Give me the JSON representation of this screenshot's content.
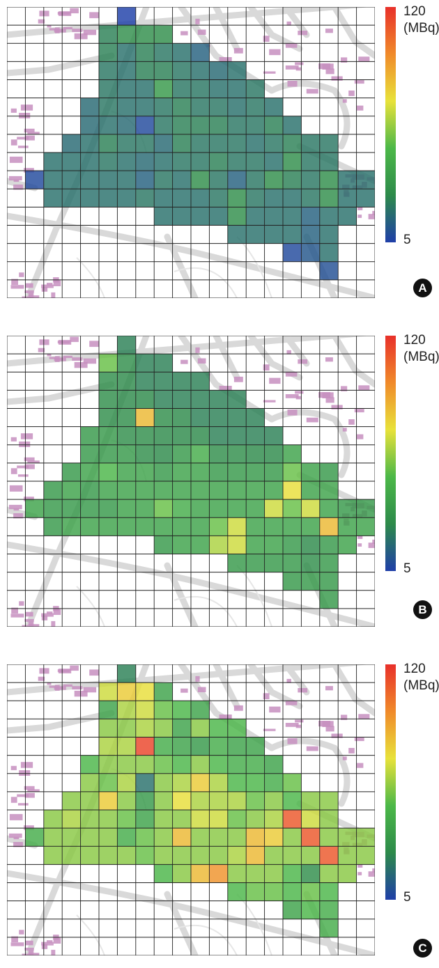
{
  "legend": {
    "max_label": "120",
    "unit_label": "(MBq)",
    "min_label": "5",
    "min_value": 5,
    "max_value": 120
  },
  "colors": {
    "scale": [
      "#1f3fa8",
      "#2d8a4a",
      "#4cb848",
      "#e8e23a",
      "#f08a2a",
      "#e8302a"
    ],
    "road": "#d9d9d9",
    "building": "#c78fc0",
    "grid": "#222222"
  },
  "grid": {
    "cols": 20,
    "rows": 16
  },
  "panels": [
    {
      "id": "A",
      "label": "A",
      "cell_values": [
        [
          null,
          null,
          null,
          null,
          null,
          null,
          5,
          null,
          null,
          null,
          null,
          null,
          null,
          null,
          null,
          null,
          null,
          null,
          null,
          null
        ],
        [
          null,
          null,
          null,
          null,
          null,
          25,
          30,
          30,
          30,
          null,
          null,
          null,
          null,
          null,
          null,
          null,
          null,
          null,
          null,
          null
        ],
        [
          null,
          null,
          null,
          null,
          null,
          25,
          20,
          25,
          22,
          20,
          15,
          null,
          null,
          null,
          null,
          null,
          null,
          null,
          null,
          null
        ],
        [
          null,
          null,
          null,
          null,
          null,
          22,
          20,
          25,
          25,
          22,
          20,
          18,
          20,
          null,
          null,
          null,
          null,
          null,
          null,
          null
        ],
        [
          null,
          null,
          null,
          null,
          null,
          22,
          20,
          20,
          35,
          22,
          22,
          20,
          20,
          22,
          null,
          null,
          null,
          null,
          null,
          null
        ],
        [
          null,
          null,
          null,
          null,
          18,
          22,
          20,
          20,
          22,
          25,
          22,
          22,
          20,
          22,
          20,
          null,
          null,
          null,
          null,
          null
        ],
        [
          null,
          null,
          null,
          null,
          18,
          20,
          18,
          8,
          22,
          25,
          25,
          25,
          22,
          22,
          25,
          20,
          null,
          null,
          null,
          null
        ],
        [
          null,
          null,
          null,
          18,
          20,
          25,
          22,
          22,
          18,
          25,
          22,
          22,
          22,
          20,
          22,
          25,
          22,
          22,
          null,
          null
        ],
        [
          null,
          null,
          20,
          20,
          20,
          22,
          20,
          18,
          20,
          22,
          22,
          25,
          22,
          22,
          20,
          30,
          22,
          22,
          null,
          null
        ],
        [
          null,
          8,
          20,
          20,
          20,
          20,
          20,
          15,
          22,
          20,
          30,
          22,
          15,
          22,
          30,
          25,
          22,
          30,
          20,
          20
        ],
        [
          null,
          null,
          20,
          20,
          20,
          20,
          20,
          22,
          20,
          20,
          20,
          22,
          30,
          22,
          20,
          20,
          22,
          30,
          20,
          20
        ],
        [
          null,
          null,
          null,
          null,
          null,
          null,
          null,
          null,
          20,
          20,
          20,
          20,
          30,
          20,
          20,
          20,
          15,
          20,
          20,
          null
        ],
        [
          null,
          null,
          null,
          null,
          null,
          null,
          null,
          null,
          null,
          null,
          null,
          null,
          20,
          20,
          20,
          20,
          15,
          20,
          null,
          null
        ],
        [
          null,
          null,
          null,
          null,
          null,
          null,
          null,
          null,
          null,
          null,
          null,
          null,
          null,
          null,
          null,
          8,
          12,
          20,
          null,
          null
        ],
        [
          null,
          null,
          null,
          null,
          null,
          null,
          null,
          null,
          null,
          null,
          null,
          null,
          null,
          null,
          null,
          null,
          null,
          10,
          null,
          null
        ],
        [
          null,
          null,
          null,
          null,
          null,
          null,
          null,
          null,
          null,
          null,
          null,
          null,
          null,
          null,
          null,
          null,
          null,
          null,
          null,
          null
        ]
      ]
    },
    {
      "id": "B",
      "label": "B",
      "cell_values": [
        [
          null,
          null,
          null,
          null,
          null,
          null,
          25,
          null,
          null,
          null,
          null,
          null,
          null,
          null,
          null,
          null,
          null,
          null,
          null,
          null
        ],
        [
          null,
          null,
          null,
          null,
          null,
          55,
          30,
          25,
          25,
          null,
          null,
          null,
          null,
          null,
          null,
          null,
          null,
          null,
          null,
          null
        ],
        [
          null,
          null,
          null,
          null,
          null,
          30,
          28,
          25,
          25,
          25,
          25,
          null,
          null,
          null,
          null,
          null,
          null,
          null,
          null,
          null
        ],
        [
          null,
          null,
          null,
          null,
          null,
          30,
          28,
          28,
          25,
          25,
          25,
          25,
          25,
          null,
          null,
          null,
          null,
          null,
          null,
          null
        ],
        [
          null,
          null,
          null,
          null,
          null,
          30,
          30,
          85,
          30,
          28,
          25,
          25,
          25,
          25,
          null,
          null,
          null,
          null,
          null,
          null
        ],
        [
          null,
          null,
          null,
          null,
          35,
          35,
          30,
          30,
          28,
          28,
          28,
          25,
          25,
          25,
          25,
          null,
          null,
          null,
          null,
          null
        ],
        [
          null,
          null,
          null,
          null,
          35,
          35,
          35,
          30,
          28,
          35,
          45,
          30,
          30,
          28,
          28,
          40,
          null,
          null,
          null,
          null
        ],
        [
          null,
          null,
          null,
          35,
          40,
          50,
          40,
          40,
          35,
          40,
          40,
          35,
          35,
          35,
          35,
          55,
          40,
          35,
          null,
          null
        ],
        [
          null,
          null,
          35,
          40,
          35,
          40,
          40,
          40,
          40,
          40,
          40,
          40,
          40,
          40,
          40,
          75,
          40,
          40,
          null,
          null
        ],
        [
          null,
          40,
          35,
          35,
          35,
          35,
          40,
          40,
          55,
          45,
          40,
          40,
          40,
          40,
          70,
          55,
          70,
          40,
          35,
          35
        ],
        [
          null,
          null,
          35,
          40,
          40,
          40,
          40,
          40,
          40,
          40,
          40,
          55,
          70,
          40,
          40,
          40,
          40,
          85,
          40,
          40
        ],
        [
          null,
          null,
          null,
          null,
          null,
          null,
          null,
          null,
          35,
          40,
          40,
          65,
          70,
          40,
          40,
          35,
          28,
          35,
          40,
          null
        ],
        [
          null,
          null,
          null,
          null,
          null,
          null,
          null,
          null,
          null,
          null,
          null,
          null,
          35,
          35,
          35,
          35,
          30,
          35,
          null,
          null
        ],
        [
          null,
          null,
          null,
          null,
          null,
          null,
          null,
          null,
          null,
          null,
          null,
          null,
          null,
          null,
          null,
          35,
          35,
          35,
          null,
          null
        ],
        [
          null,
          null,
          null,
          null,
          null,
          null,
          null,
          null,
          null,
          null,
          null,
          null,
          null,
          null,
          null,
          null,
          null,
          35,
          null,
          null
        ],
        [
          null,
          null,
          null,
          null,
          null,
          null,
          null,
          null,
          null,
          null,
          null,
          null,
          null,
          null,
          null,
          null,
          null,
          null,
          null,
          null
        ]
      ]
    },
    {
      "id": "C",
      "label": "C",
      "cell_values": [
        [
          null,
          null,
          null,
          null,
          null,
          null,
          25,
          null,
          null,
          null,
          null,
          null,
          null,
          null,
          null,
          null,
          null,
          null,
          null,
          null
        ],
        [
          null,
          null,
          null,
          null,
          null,
          70,
          80,
          75,
          40,
          null,
          null,
          null,
          null,
          null,
          null,
          null,
          null,
          null,
          null,
          null
        ],
        [
          null,
          null,
          null,
          null,
          null,
          40,
          65,
          70,
          55,
          50,
          40,
          null,
          null,
          null,
          null,
          null,
          null,
          null,
          null,
          null
        ],
        [
          null,
          null,
          null,
          null,
          null,
          60,
          60,
          65,
          60,
          40,
          60,
          50,
          50,
          null,
          null,
          null,
          null,
          null,
          null,
          null
        ],
        [
          null,
          null,
          null,
          null,
          null,
          65,
          65,
          115,
          45,
          40,
          35,
          45,
          40,
          40,
          null,
          null,
          null,
          null,
          null,
          null
        ],
        [
          null,
          null,
          null,
          null,
          50,
          60,
          60,
          60,
          55,
          50,
          60,
          50,
          45,
          45,
          40,
          null,
          null,
          null,
          null,
          null
        ],
        [
          null,
          null,
          null,
          null,
          60,
          55,
          65,
          20,
          60,
          65,
          80,
          65,
          50,
          50,
          45,
          55,
          null,
          null,
          null,
          null
        ],
        [
          null,
          null,
          null,
          60,
          60,
          80,
          60,
          35,
          60,
          75,
          65,
          65,
          65,
          55,
          60,
          50,
          60,
          60,
          null,
          null
        ],
        [
          null,
          null,
          60,
          65,
          60,
          60,
          55,
          40,
          60,
          60,
          70,
          70,
          55,
          60,
          65,
          110,
          70,
          60,
          null,
          null
        ],
        [
          null,
          45,
          60,
          60,
          60,
          60,
          45,
          55,
          60,
          85,
          60,
          60,
          60,
          85,
          80,
          60,
          110,
          60,
          60,
          60
        ],
        [
          null,
          null,
          60,
          60,
          60,
          60,
          60,
          55,
          60,
          60,
          60,
          60,
          65,
          85,
          60,
          60,
          60,
          110,
          60,
          60
        ],
        [
          null,
          null,
          null,
          null,
          null,
          null,
          null,
          null,
          50,
          60,
          85,
          95,
          60,
          60,
          60,
          50,
          30,
          60,
          60,
          null
        ],
        [
          null,
          null,
          null,
          null,
          null,
          null,
          null,
          null,
          null,
          null,
          null,
          null,
          50,
          55,
          55,
          50,
          55,
          50,
          null,
          null
        ],
        [
          null,
          null,
          null,
          null,
          null,
          null,
          null,
          null,
          null,
          null,
          null,
          null,
          null,
          null,
          null,
          40,
          50,
          45,
          null,
          null
        ],
        [
          null,
          null,
          null,
          null,
          null,
          null,
          null,
          null,
          null,
          null,
          null,
          null,
          null,
          null,
          null,
          null,
          null,
          45,
          null,
          null
        ],
        [
          null,
          null,
          null,
          null,
          null,
          null,
          null,
          null,
          null,
          null,
          null,
          null,
          null,
          null,
          null,
          null,
          null,
          null,
          null,
          null
        ]
      ]
    }
  ]
}
